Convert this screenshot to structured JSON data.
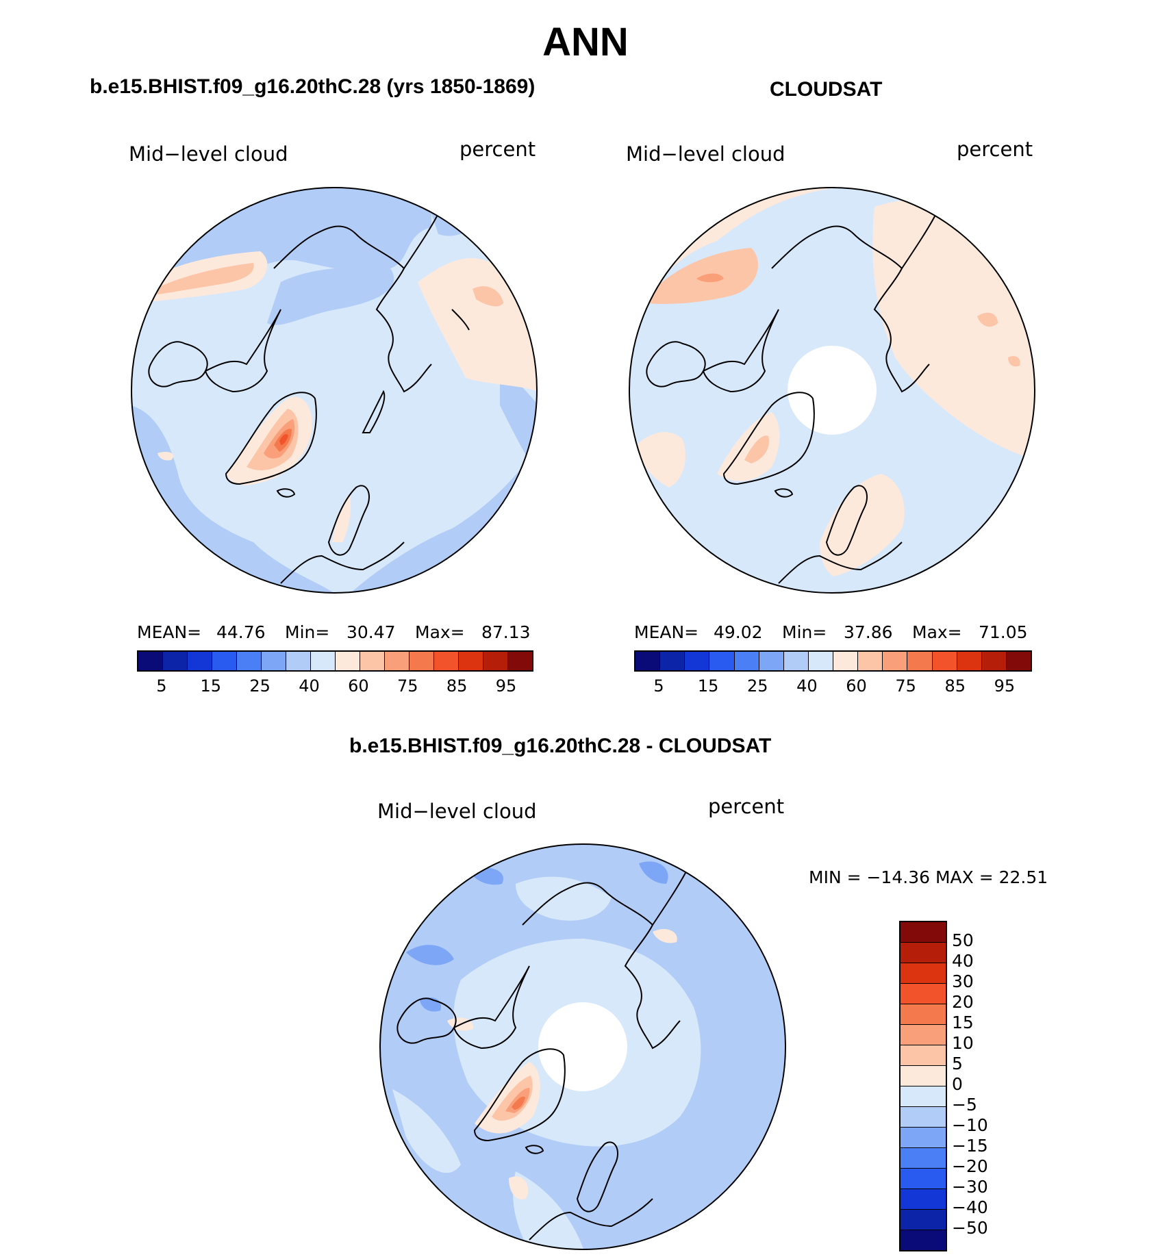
{
  "figure": {
    "title": "ANN"
  },
  "panels": [
    {
      "id": "model",
      "title": "b.e15.BHIST.f09_g16.20thC.28 (yrs 1850-1869)",
      "left_label": "Mid−level cloud",
      "right_label": "percent",
      "stats": {
        "mean_label": "MEAN=",
        "mean": "44.76",
        "min_label": "Min=",
        "min": "30.47",
        "max_label": "Max=",
        "max": "87.13"
      }
    },
    {
      "id": "obs",
      "title": "CLOUDSAT",
      "left_label": "Mid−level cloud",
      "right_label": "percent",
      "stats": {
        "mean_label": "MEAN=",
        "mean": "49.02",
        "min_label": "Min=",
        "min": "37.86",
        "max_label": "Max=",
        "max": "71.05"
      }
    },
    {
      "id": "diff",
      "title": "b.e15.BHIST.f09_g16.20thC.28 - CLOUDSAT",
      "left_label": "Mid−level cloud",
      "right_label": "percent",
      "stats_text": "MIN  =  −14.36  MAX  =    22.51"
    }
  ],
  "colorbar_abs": {
    "colors": [
      "#0a0a78",
      "#0c24a8",
      "#1237d6",
      "#2a5bf0",
      "#4a7ff5",
      "#7ea6f6",
      "#b0ccf7",
      "#d8e8fb",
      "#fde9dc",
      "#fcc5a8",
      "#f9a07a",
      "#f47a4e",
      "#f2532a",
      "#dc3411",
      "#b51f0a",
      "#820a08"
    ],
    "tick_labels": [
      "5",
      "15",
      "25",
      "40",
      "60",
      "75",
      "85",
      "95"
    ]
  },
  "colorbar_diff": {
    "colors": [
      "#820a08",
      "#b51f0a",
      "#dc3411",
      "#f2532a",
      "#f47a4e",
      "#f9a07a",
      "#fcc5a8",
      "#fde9dc",
      "#d8e8fb",
      "#b0ccf7",
      "#7ea6f6",
      "#4a7ff5",
      "#2a5bf0",
      "#1237d6",
      "#0c24a8",
      "#0a0a78"
    ],
    "tick_labels": [
      "50",
      "40",
      "30",
      "20",
      "15",
      "10",
      "5",
      "0",
      "−5",
      "−10",
      "−15",
      "−20",
      "−30",
      "−40",
      "−50"
    ]
  },
  "map_colors": {
    "c_lightblue": "#d8e8fb",
    "c_blue2": "#b0ccf7",
    "c_blue3": "#7ea6f6",
    "c_peach": "#fde9dc",
    "c_salmon": "#fcc5a8",
    "c_orange1": "#f9a07a",
    "c_orange2": "#f47a4e",
    "c_red": "#f2532a",
    "c_red2": "#dc3411"
  }
}
